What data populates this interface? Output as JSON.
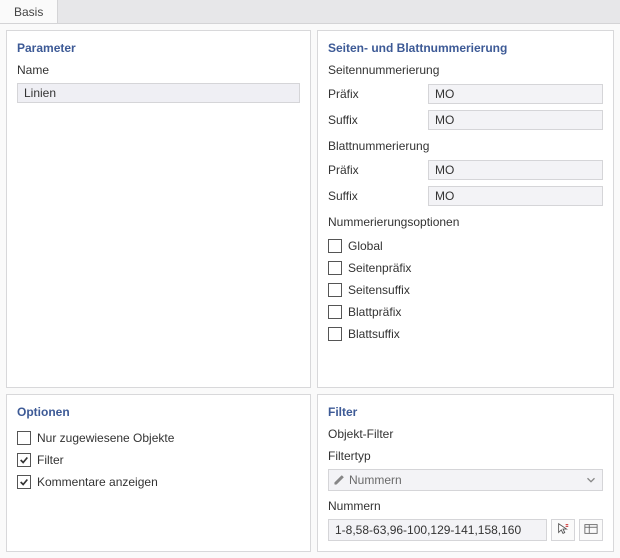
{
  "tab": {
    "label": "Basis"
  },
  "parameter": {
    "title": "Parameter",
    "name_label": "Name",
    "name_value": "Linien"
  },
  "numbering": {
    "title": "Seiten- und Blattnummerierung",
    "page_heading": "Seitennummerierung",
    "page_prefix_label": "Präfix",
    "page_prefix_value": "MO",
    "page_suffix_label": "Suffix",
    "page_suffix_value": "MO",
    "sheet_heading": "Blattnummerierung",
    "sheet_prefix_label": "Präfix",
    "sheet_prefix_value": "MO",
    "sheet_suffix_label": "Suffix",
    "sheet_suffix_value": "MO",
    "options_heading": "Nummerierungsoptionen",
    "options": [
      {
        "label": "Global",
        "checked": false
      },
      {
        "label": "Seitenpräfix",
        "checked": false
      },
      {
        "label": "Seitensuffix",
        "checked": false
      },
      {
        "label": "Blattpräfix",
        "checked": false
      },
      {
        "label": "Blattsuffix",
        "checked": false
      }
    ]
  },
  "options": {
    "title": "Optionen",
    "items": [
      {
        "label": "Nur zugewiesene Objekte",
        "checked": false
      },
      {
        "label": "Filter",
        "checked": true
      },
      {
        "label": "Kommentare anzeigen",
        "checked": true
      }
    ]
  },
  "filter": {
    "title": "Filter",
    "object_filter_heading": "Objekt-Filter",
    "type_label": "Filtertyp",
    "type_value": "Nummern",
    "numbers_label": "Nummern",
    "numbers_value": "1-8,58-63,96-100,129-141,158,160"
  },
  "colors": {
    "panel_title": "#3d5a96",
    "input_bg": "#f3f3f6",
    "border": "#d5d5d8"
  }
}
